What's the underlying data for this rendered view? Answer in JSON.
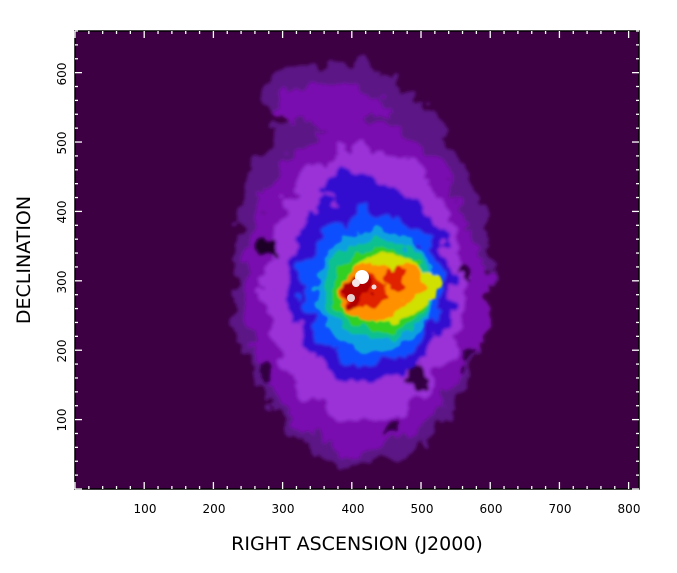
{
  "figure": {
    "type": "astronomical-image",
    "xlabel": "RIGHT ASCENSION (J2000)",
    "ylabel": "DECLINATION",
    "x_ticks": [
      "100",
      "200",
      "300",
      "400",
      "500",
      "600",
      "700",
      "800"
    ],
    "y_ticks": [
      "100",
      "200",
      "300",
      "400",
      "500",
      "600"
    ],
    "background_color": "#3d0042",
    "colormap": [
      "#3d0042",
      "#7a10b0",
      "#9a30d8",
      "#3010d0",
      "#1050ff",
      "#10a0e0",
      "#10c090",
      "#30d020",
      "#d0e000",
      "#ff9000",
      "#e02000",
      "#b00000",
      "#ffffff"
    ]
  }
}
